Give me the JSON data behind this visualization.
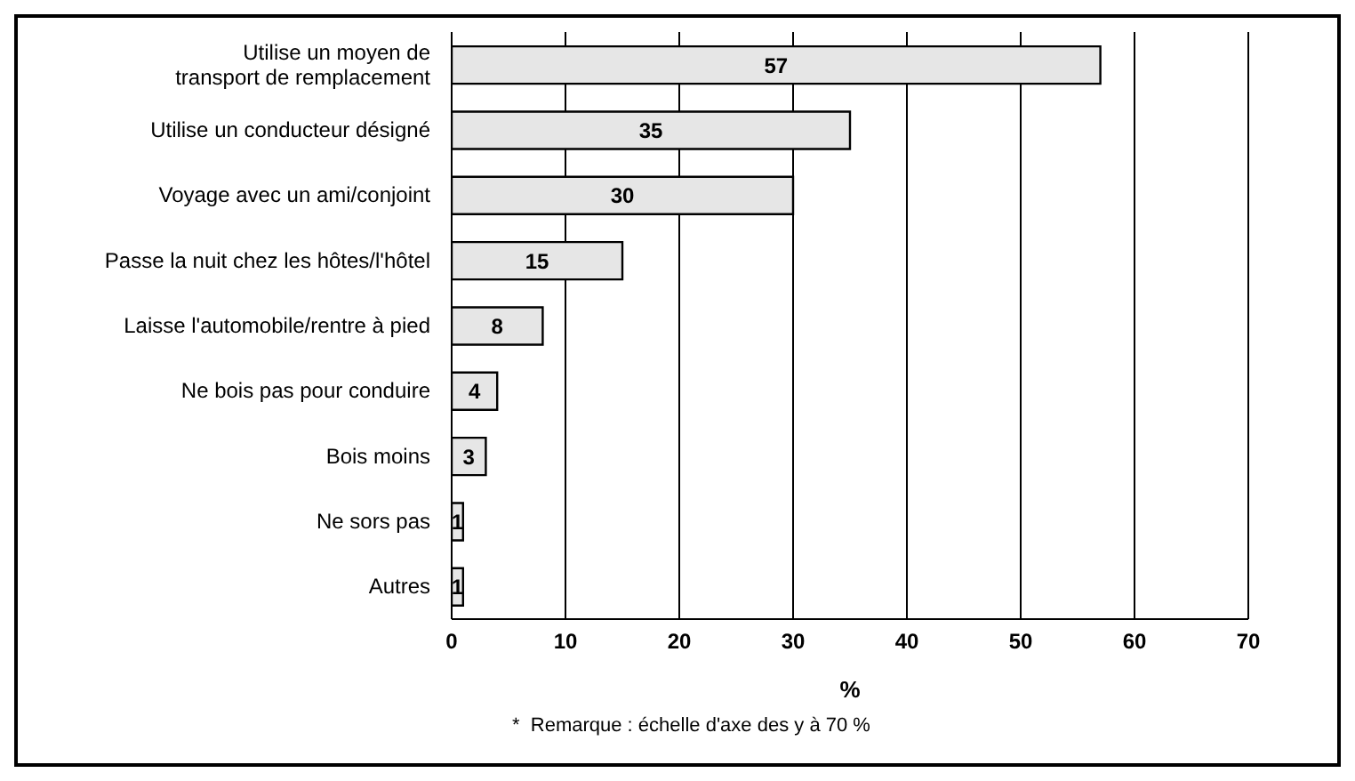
{
  "chart_data": {
    "type": "bar",
    "orientation": "horizontal",
    "categories": [
      "Utilise un moyen de\ntransport de remplacement",
      "Utilise un conducteur désigné",
      "Voyage avec un ami/conjoint",
      "Passe la nuit chez les hôtes/l'hôtel",
      "Laisse l'automobile/rentre à pied",
      "Ne bois pas pour conduire",
      "Bois moins",
      "Ne sors pas",
      "Autres"
    ],
    "values": [
      57,
      35,
      30,
      15,
      8,
      4,
      3,
      1,
      1
    ],
    "color": "#e6e6e6",
    "xlim": [
      0,
      70
    ],
    "xticks": [
      0,
      10,
      20,
      30,
      40,
      50,
      60,
      70
    ],
    "xlabel": "%",
    "grid": "x",
    "data_labels": true,
    "annotations": [
      "*  Remarque : échelle d'axe des y à 70 %"
    ]
  }
}
